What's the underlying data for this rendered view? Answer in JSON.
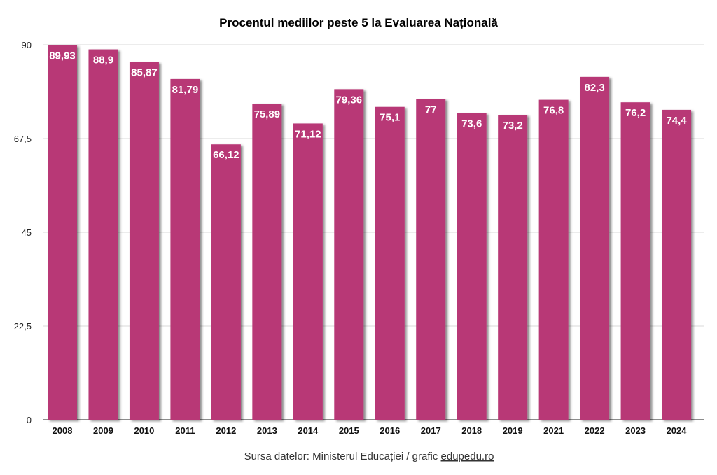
{
  "chart_data": {
    "type": "bar",
    "title": "Procentul mediilor peste 5 la Evaluarea Națională",
    "categories": [
      "2008",
      "2009",
      "2010",
      "2011",
      "2012",
      "2013",
      "2014",
      "2015",
      "2016",
      "2017",
      "2018",
      "2019",
      "2021",
      "2022",
      "2023",
      "2024"
    ],
    "values": [
      89.93,
      88.9,
      85.87,
      81.79,
      66.12,
      75.89,
      71.12,
      79.36,
      75.1,
      77,
      73.6,
      73.2,
      76.8,
      82.3,
      76.2,
      74.4
    ],
    "value_labels": [
      "89,93",
      "88,9",
      "85,87",
      "81,79",
      "66,12",
      "75,89",
      "71,12",
      "79,36",
      "75,1",
      "77",
      "73,6",
      "73,2",
      "76,8",
      "82,3",
      "76,2",
      "74,4"
    ],
    "ylim": [
      0,
      90
    ],
    "yticks": [
      0,
      22.5,
      45,
      67.5,
      90
    ],
    "ytick_labels": [
      "0",
      "22,5",
      "45",
      "67,5",
      "90"
    ],
    "grid": true,
    "xlabel": "",
    "ylabel": "",
    "bar_color": "#b83876",
    "source_prefix": "Sursa datelor: Ministerul Educației / grafic ",
    "source_link": "edupedu.ro"
  }
}
